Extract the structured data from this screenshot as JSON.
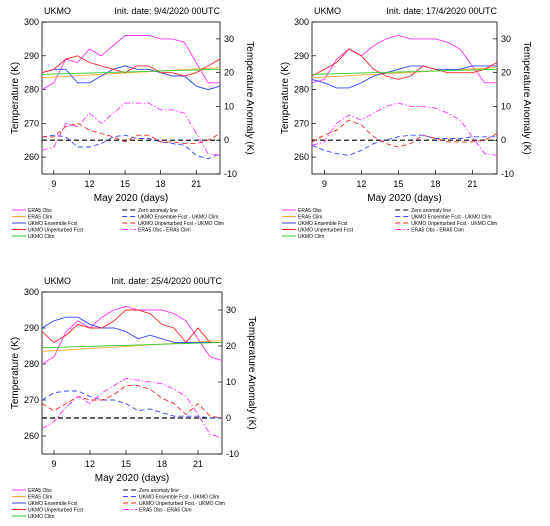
{
  "x_label": "May 2020 (days)",
  "y_left_label": "Temperature (K)",
  "y_right_label": "Temperature Anomaly (K)",
  "colors": {
    "era5_obs": "#ff33ff",
    "era5_clim": "#ffaa33",
    "ukmo_ens": "#3344ff",
    "ukmo_unp": "#ff2222",
    "ukmo_clim": "#33cc33",
    "zero": "#000000"
  },
  "legend_left": [
    "ERA5 Obs",
    "ERA5 Clim",
    "UKMO Ensemble Fcst",
    "UKMO Unperturbed Fcst",
    "UKMO Clim"
  ],
  "legend_right": [
    "Zero anomaly line",
    "UKMO Ensemble Fcst - UKMO Clim",
    "UKMO Unperturbed Fcst - UKMO Clim",
    "ERA5 Obs - ERA5 Clim"
  ],
  "chart_data": [
    {
      "type": "line",
      "model": "UKMO",
      "init_label": "Init. date: 9/4/2020 00UTC",
      "x": [
        8,
        9,
        10,
        11,
        12,
        13,
        14,
        15,
        16,
        17,
        18,
        19,
        20,
        21,
        22,
        23
      ],
      "xticks": [
        9,
        12,
        15,
        18,
        21
      ],
      "ylim": [
        255,
        300
      ],
      "yticks": [
        260,
        270,
        280,
        290,
        300
      ],
      "y2lim": [
        -10,
        35
      ],
      "y2ticks": [
        -10,
        0,
        10,
        20,
        30
      ],
      "series": [
        {
          "name": "ERA5 Obs",
          "axis": "left",
          "style": "solid",
          "color_key": "era5_obs",
          "values": [
            280,
            282,
            289,
            288,
            292,
            290,
            293,
            296,
            296,
            296,
            295,
            295,
            294,
            288,
            282,
            282
          ]
        },
        {
          "name": "ERA5 Clim",
          "axis": "left",
          "style": "solid",
          "color_key": "era5_clim",
          "values": [
            283.5,
            283.7,
            283.9,
            284.1,
            284.3,
            284.5,
            284.7,
            284.9,
            285.1,
            285.3,
            285.5,
            285.7,
            285.9,
            286.1,
            286.3,
            286.5
          ]
        },
        {
          "name": "UKMO Ensemble Fcst",
          "axis": "left",
          "style": "solid",
          "color_key": "ukmo_ens",
          "values": [
            285,
            286,
            286,
            282,
            282,
            284,
            286,
            287,
            286,
            286,
            285,
            284,
            284,
            281,
            280,
            281
          ]
        },
        {
          "name": "UKMO Unperturbed Fcst",
          "axis": "left",
          "style": "solid",
          "color_key": "ukmo_unp",
          "values": [
            285,
            286,
            289,
            290,
            288,
            287,
            286,
            285,
            287,
            287,
            285,
            285,
            284,
            285,
            287,
            289
          ]
        },
        {
          "name": "UKMO Clim",
          "axis": "left",
          "style": "solid",
          "color_key": "ukmo_clim",
          "values": [
            284.5,
            284.6,
            284.7,
            284.8,
            284.9,
            285,
            285.1,
            285.2,
            285.3,
            285.4,
            285.5,
            285.6,
            285.7,
            285.8,
            285.9,
            286
          ]
        },
        {
          "name": "Zero anomaly line",
          "axis": "right",
          "style": "dash",
          "color_key": "zero",
          "values": [
            0,
            0,
            0,
            0,
            0,
            0,
            0,
            0,
            0,
            0,
            0,
            0,
            0,
            0,
            0,
            0
          ]
        },
        {
          "name": "UKMO Ensemble Fcst - UKMO Clim",
          "axis": "right",
          "style": "dash",
          "color_key": "ukmo_ens",
          "values": [
            1,
            1.5,
            1,
            -2,
            -2,
            -1,
            1,
            1.5,
            0.5,
            0.5,
            -0.5,
            -1,
            -1.5,
            -4.5,
            -5.5,
            -4
          ]
        },
        {
          "name": "UKMO Unperturbed Fcst - UKMO Clim",
          "axis": "right",
          "style": "dash",
          "color_key": "ukmo_unp",
          "values": [
            1,
            1,
            4,
            5,
            3,
            2,
            1,
            -0.5,
            1.5,
            1.5,
            -0.5,
            -0.5,
            -1,
            -1,
            0,
            2
          ]
        },
        {
          "name": "ERA5 Obs - ERA5 Clim",
          "axis": "right",
          "style": "dashdot",
          "color_key": "era5_obs",
          "values": [
            -3,
            -2,
            5,
            4,
            8,
            5,
            8,
            11,
            11,
            11,
            9,
            9,
            8,
            2,
            -4,
            -4.5
          ]
        }
      ]
    },
    {
      "type": "line",
      "model": "UKMO",
      "init_label": "Init. date: 17/4/2020 00UTC",
      "x": [
        8,
        9,
        10,
        11,
        12,
        13,
        14,
        15,
        16,
        17,
        18,
        19,
        20,
        21,
        22,
        23
      ],
      "xticks": [
        9,
        12,
        15,
        18,
        21
      ],
      "ylim": [
        255,
        300
      ],
      "yticks": [
        260,
        270,
        280,
        290,
        300
      ],
      "y2lim": [
        -10,
        35
      ],
      "y2ticks": [
        -10,
        0,
        10,
        20,
        30
      ],
      "series": [
        {
          "name": "ERA5 Obs",
          "axis": "left",
          "style": "solid",
          "color_key": "era5_obs",
          "values": [
            282,
            283,
            289,
            292,
            290,
            293,
            295,
            296,
            295,
            295,
            295,
            294,
            292,
            287,
            282,
            282
          ]
        },
        {
          "name": "ERA5 Clim",
          "axis": "left",
          "style": "solid",
          "color_key": "era5_clim",
          "values": [
            283.5,
            283.7,
            283.9,
            284.1,
            284.3,
            284.5,
            284.7,
            284.9,
            285.1,
            285.3,
            285.5,
            285.7,
            285.9,
            286.1,
            286.3,
            286.5
          ]
        },
        {
          "name": "UKMO Ensemble Fcst",
          "axis": "left",
          "style": "solid",
          "color_key": "ukmo_ens",
          "values": [
            283,
            282,
            280.5,
            280.5,
            282,
            284,
            285,
            286,
            287,
            287,
            286,
            286,
            286,
            287,
            287,
            287
          ]
        },
        {
          "name": "UKMO Unperturbed Fcst",
          "axis": "left",
          "style": "solid",
          "color_key": "ukmo_unp",
          "values": [
            284,
            286,
            288,
            292,
            290,
            286,
            284,
            283,
            284,
            287,
            286,
            285,
            285,
            285,
            286,
            288
          ]
        },
        {
          "name": "UKMO Clim",
          "axis": "left",
          "style": "solid",
          "color_key": "ukmo_clim",
          "values": [
            284.5,
            284.6,
            284.7,
            284.8,
            284.9,
            285,
            285.1,
            285.2,
            285.3,
            285.4,
            285.5,
            285.6,
            285.7,
            285.8,
            285.9,
            286
          ]
        },
        {
          "name": "Zero anomaly line",
          "axis": "right",
          "style": "dash",
          "color_key": "zero",
          "values": [
            0,
            0,
            0,
            0,
            0,
            0,
            0,
            0,
            0,
            0,
            0,
            0,
            0,
            0,
            0,
            0
          ]
        },
        {
          "name": "UKMO Ensemble Fcst - UKMO Clim",
          "axis": "right",
          "style": "dash",
          "color_key": "ukmo_ens",
          "values": [
            -1.5,
            -3,
            -4,
            -4.5,
            -3,
            -1,
            0,
            1,
            1.5,
            1.5,
            0.5,
            0.5,
            0.5,
            1,
            1,
            1
          ]
        },
        {
          "name": "UKMO Unperturbed Fcst - UKMO Clim",
          "axis": "right",
          "style": "dash",
          "color_key": "ukmo_unp",
          "values": [
            -0.5,
            1.5,
            3,
            6,
            4.5,
            1,
            -1,
            -2,
            -1,
            1.5,
            0.5,
            -0.5,
            -0.5,
            -0.5,
            0,
            2
          ]
        },
        {
          "name": "ERA5 Obs - ERA5 Clim",
          "axis": "right",
          "style": "dashdot",
          "color_key": "era5_obs",
          "values": [
            -1.5,
            -0.5,
            5,
            7.5,
            6,
            8,
            10,
            11,
            10,
            10,
            9.5,
            8,
            6,
            1,
            -4,
            -4.5
          ]
        }
      ]
    },
    {
      "type": "line",
      "model": "UKMO",
      "init_label": "Init. date: 25/4/2020 00UTC",
      "x": [
        8,
        9,
        10,
        11,
        12,
        13,
        14,
        15,
        16,
        17,
        18,
        19,
        20,
        21,
        22,
        23
      ],
      "xticks": [
        9,
        12,
        15,
        18,
        21
      ],
      "ylim": [
        255,
        300
      ],
      "yticks": [
        260,
        270,
        280,
        290,
        300
      ],
      "y2lim": [
        -10,
        35
      ],
      "y2ticks": [
        -10,
        0,
        10,
        20,
        30
      ],
      "series": [
        {
          "name": "ERA5 Obs",
          "axis": "left",
          "style": "solid",
          "color_key": "era5_obs",
          "values": [
            280,
            282,
            289,
            292,
            290,
            293,
            295,
            296,
            295,
            295,
            295,
            294,
            292,
            287,
            282,
            281
          ]
        },
        {
          "name": "ERA5 Clim",
          "axis": "left",
          "style": "solid",
          "color_key": "era5_clim",
          "values": [
            283.5,
            283.7,
            283.9,
            284.1,
            284.3,
            284.5,
            284.7,
            284.9,
            285.1,
            285.3,
            285.5,
            285.7,
            285.9,
            286.1,
            286.3,
            286.5
          ]
        },
        {
          "name": "UKMO Ensemble Fcst",
          "axis": "left",
          "style": "solid",
          "color_key": "ukmo_ens",
          "values": [
            290,
            292,
            293,
            293,
            291,
            290,
            290,
            289,
            287,
            288,
            287,
            286,
            286,
            286,
            286,
            286
          ]
        },
        {
          "name": "UKMO Unperturbed Fcst",
          "axis": "left",
          "style": "solid",
          "color_key": "ukmo_unp",
          "values": [
            289,
            286,
            288,
            291,
            290,
            290,
            292,
            295,
            295,
            294,
            291,
            290,
            286,
            290,
            286,
            286
          ]
        },
        {
          "name": "UKMO Clim",
          "axis": "left",
          "style": "solid",
          "color_key": "ukmo_clim",
          "values": [
            284.5,
            284.6,
            284.7,
            284.8,
            284.9,
            285,
            285.1,
            285.2,
            285.3,
            285.4,
            285.5,
            285.6,
            285.7,
            285.8,
            285.9,
            286
          ]
        },
        {
          "name": "Zero anomaly line",
          "axis": "right",
          "style": "dash",
          "color_key": "zero",
          "values": [
            0,
            0,
            0,
            0,
            0,
            0,
            0,
            0,
            0,
            0,
            0,
            0,
            0,
            0,
            0,
            0
          ]
        },
        {
          "name": "UKMO Ensemble Fcst - UKMO Clim",
          "axis": "right",
          "style": "dash",
          "color_key": "ukmo_ens",
          "values": [
            5,
            7,
            7.5,
            7.5,
            6,
            5,
            5,
            4,
            2,
            2.5,
            1.5,
            0.5,
            0.5,
            0.5,
            0,
            0
          ]
        },
        {
          "name": "UKMO Unperturbed Fcst - UKMO Clim",
          "axis": "right",
          "style": "dash",
          "color_key": "ukmo_unp",
          "values": [
            4,
            2,
            4,
            6,
            5,
            5,
            6.5,
            9,
            9,
            8,
            5.5,
            4,
            1,
            4,
            0.5,
            0
          ]
        },
        {
          "name": "ERA5 Obs - ERA5 Clim",
          "axis": "right",
          "style": "dashdot",
          "color_key": "era5_obs",
          "values": [
            -3,
            -1,
            3,
            6,
            4,
            7,
            9,
            11,
            10.5,
            10,
            9.5,
            8,
            6,
            1,
            -4.5,
            -5.5
          ]
        }
      ]
    }
  ]
}
